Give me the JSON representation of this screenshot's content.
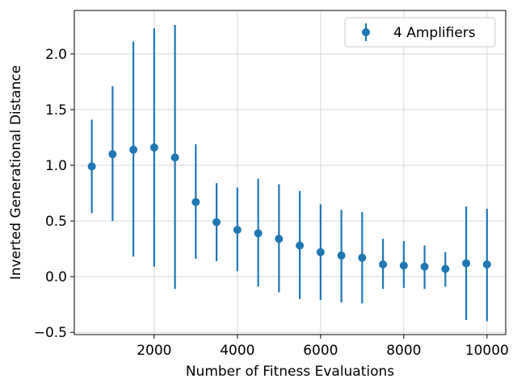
{
  "chart_data": {
    "type": "scatter",
    "title": "",
    "xlabel": "Number of Fitness Evaluations",
    "ylabel": "Inverted Generational Distance",
    "xlim": [
      80,
      10450
    ],
    "ylim": [
      -0.52,
      2.39
    ],
    "xticks": [
      2000,
      4000,
      6000,
      8000,
      10000
    ],
    "xtick_labels": [
      "2000",
      "4000",
      "6000",
      "8000",
      "10000"
    ],
    "yticks": [
      -0.5,
      0.0,
      0.5,
      1.0,
      1.5,
      2.0
    ],
    "ytick_labels": [
      "−0.5",
      "0.0",
      "0.5",
      "1.0",
      "1.5",
      "2.0"
    ],
    "grid": true,
    "legend_position": "top-right",
    "series": [
      {
        "name": "4 Amplifiers",
        "color": "#1f77b4",
        "marker": "circle",
        "errorbars": true,
        "points": [
          {
            "x": 500,
            "y": 0.99,
            "low": 0.57,
            "high": 1.41
          },
          {
            "x": 1000,
            "y": 1.1,
            "low": 0.5,
            "high": 1.71
          },
          {
            "x": 1500,
            "y": 1.14,
            "low": 0.18,
            "high": 2.11
          },
          {
            "x": 2000,
            "y": 1.16,
            "low": 0.09,
            "high": 2.23
          },
          {
            "x": 2500,
            "y": 1.07,
            "low": -0.11,
            "high": 2.26
          },
          {
            "x": 3000,
            "y": 0.67,
            "low": 0.16,
            "high": 1.19
          },
          {
            "x": 3500,
            "y": 0.49,
            "low": 0.14,
            "high": 0.84
          },
          {
            "x": 4000,
            "y": 0.42,
            "low": 0.05,
            "high": 0.8
          },
          {
            "x": 4500,
            "y": 0.39,
            "low": -0.09,
            "high": 0.88
          },
          {
            "x": 5000,
            "y": 0.34,
            "low": -0.14,
            "high": 0.83
          },
          {
            "x": 5500,
            "y": 0.28,
            "low": -0.2,
            "high": 0.77
          },
          {
            "x": 6000,
            "y": 0.22,
            "low": -0.21,
            "high": 0.65
          },
          {
            "x": 6500,
            "y": 0.19,
            "low": -0.23,
            "high": 0.6
          },
          {
            "x": 7000,
            "y": 0.17,
            "low": -0.24,
            "high": 0.58
          },
          {
            "x": 7500,
            "y": 0.11,
            "low": -0.11,
            "high": 0.34
          },
          {
            "x": 8000,
            "y": 0.1,
            "low": -0.1,
            "high": 0.32
          },
          {
            "x": 8500,
            "y": 0.09,
            "low": -0.11,
            "high": 0.28
          },
          {
            "x": 9000,
            "y": 0.07,
            "low": -0.09,
            "high": 0.22
          },
          {
            "x": 9500,
            "y": 0.12,
            "low": -0.39,
            "high": 0.63
          },
          {
            "x": 10000,
            "y": 0.11,
            "low": -0.4,
            "high": 0.61
          }
        ]
      }
    ]
  }
}
